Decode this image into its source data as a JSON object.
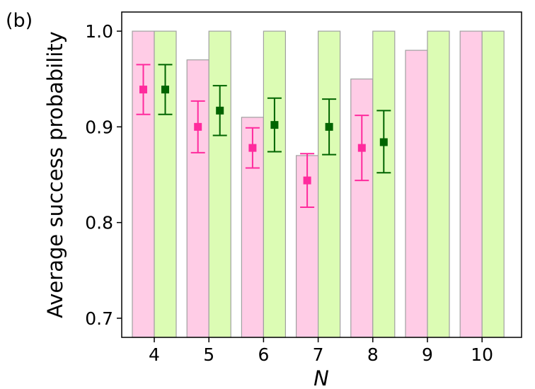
{
  "panel_label": "(b)",
  "chart_data": {
    "type": "bar",
    "title": "",
    "xlabel": "N",
    "ylabel": "Average success probability",
    "categories": [
      "4",
      "5",
      "6",
      "7",
      "8",
      "9",
      "10"
    ],
    "ylim": [
      0.68,
      1.02
    ],
    "yticks": [
      0.7,
      0.8,
      0.9,
      1.0
    ],
    "ytick_labels": [
      "0.7",
      "0.8",
      "0.9",
      "1.0"
    ],
    "grid": false,
    "legend": "none",
    "series": [
      {
        "color": "#ffcce6",
        "bar_values": [
          1.0,
          0.97,
          0.91,
          0.87,
          0.95,
          0.98,
          1.0
        ],
        "marker_color": "#ff2a9d",
        "points": [
          0.939,
          0.9,
          0.878,
          0.844,
          0.878,
          null,
          null
        ],
        "err_low": [
          0.913,
          0.873,
          0.857,
          0.816,
          0.844,
          null,
          null
        ],
        "err_high": [
          0.965,
          0.927,
          0.899,
          0.872,
          0.912,
          null,
          null
        ]
      },
      {
        "color": "#dcfcb4",
        "bar_values": [
          1.0,
          1.0,
          1.0,
          1.0,
          1.0,
          1.0,
          1.0
        ],
        "marker_color": "#006400",
        "points": [
          0.939,
          0.917,
          0.902,
          0.9,
          0.884,
          null,
          null
        ],
        "err_low": [
          0.913,
          0.891,
          0.874,
          0.871,
          0.852,
          null,
          null
        ],
        "err_high": [
          0.965,
          0.943,
          0.93,
          0.929,
          0.917,
          null,
          null
        ]
      }
    ]
  }
}
